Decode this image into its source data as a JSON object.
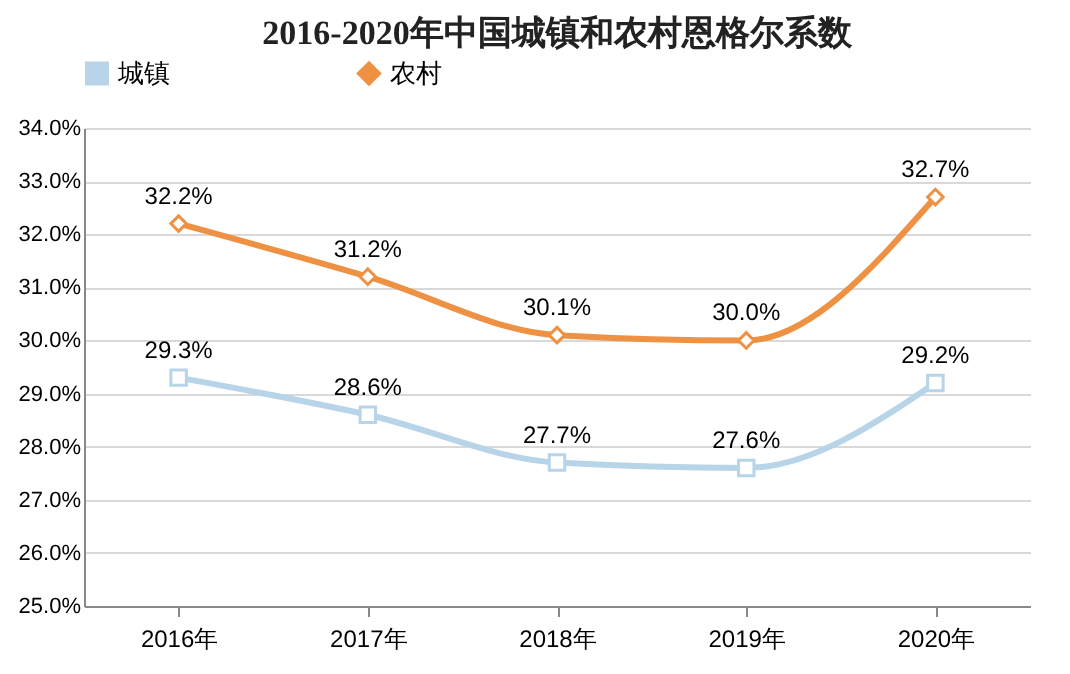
{
  "chart_data": {
    "type": "line",
    "title": "2016-2020年中国城镇和农村恩格尔系数",
    "categories": [
      "2016年",
      "2017年",
      "2018年",
      "2019年",
      "2020年"
    ],
    "series": [
      {
        "name": "城镇",
        "color": "#b7d4e8",
        "marker": "square",
        "values": [
          29.3,
          28.6,
          27.7,
          27.6,
          29.2
        ],
        "value_labels": [
          "29.3%",
          "28.6%",
          "27.7%",
          "27.6%",
          "29.2%"
        ]
      },
      {
        "name": "农村",
        "color": "#ee9143",
        "marker": "diamond",
        "values": [
          32.2,
          31.2,
          30.1,
          30.0,
          32.7
        ],
        "value_labels": [
          "32.2%",
          "31.2%",
          "30.1%",
          "30.0%",
          "32.7%"
        ]
      }
    ],
    "ylim": [
      25,
      34
    ],
    "yticks": [
      {
        "value": 25,
        "label": "25.0%"
      },
      {
        "value": 26,
        "label": "26.0%"
      },
      {
        "value": 27,
        "label": "27.0%"
      },
      {
        "value": 28,
        "label": "28.0%"
      },
      {
        "value": 29,
        "label": "29.0%"
      },
      {
        "value": 30,
        "label": "30.0%"
      },
      {
        "value": 31,
        "label": "31.0%"
      },
      {
        "value": 32,
        "label": "32.0%"
      },
      {
        "value": 33,
        "label": "33.0%"
      },
      {
        "value": 34,
        "label": "34.0%"
      }
    ],
    "grid": "y",
    "legend": "top",
    "line_style": "solid"
  }
}
